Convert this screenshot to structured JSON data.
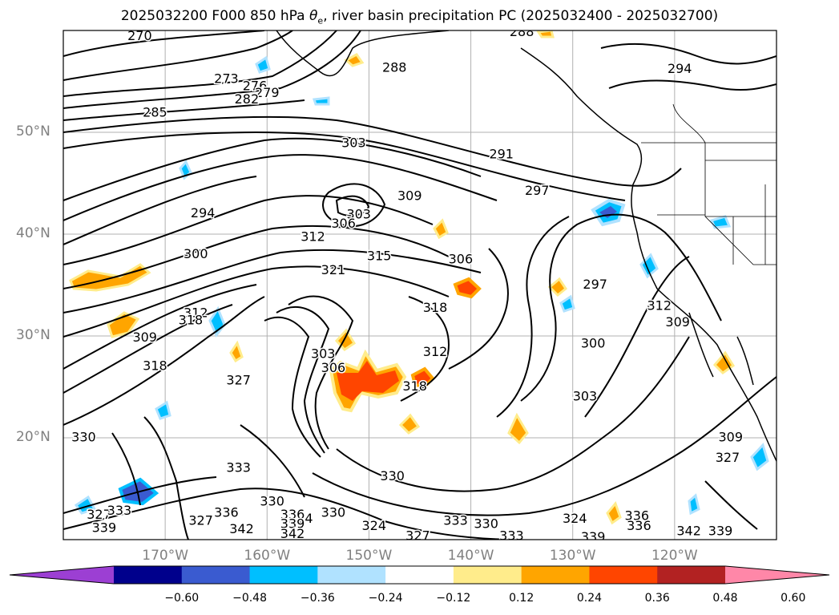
{
  "title_prefix": "2025032200 F000 850 hPa ",
  "title_symbol": "θ",
  "title_subscript": "e",
  "title_suffix": ", river basin precipitation PC (2025032400 - 2025032700)",
  "lat_labels": [
    {
      "text": "50°N",
      "value": 50
    },
    {
      "text": "40°N",
      "value": 40
    },
    {
      "text": "30°N",
      "value": 30
    },
    {
      "text": "20°N",
      "value": 20
    }
  ],
  "lon_labels": [
    {
      "text": "170°W",
      "value": -170
    },
    {
      "text": "160°W",
      "value": -160
    },
    {
      "text": "150°W",
      "value": -150
    },
    {
      "text": "140°W",
      "value": -140
    },
    {
      "text": "130°W",
      "value": -130
    },
    {
      "text": "120°W",
      "value": -120
    }
  ],
  "colorbar": {
    "colors": [
      "#9c3fd3",
      "#00008c",
      "#3a5bd0",
      "#00bfff",
      "#b0e2ff",
      "#ffffff",
      "#ffec8b",
      "#ffa500",
      "#ff4500",
      "#b22222",
      "#ff87a8"
    ],
    "ticks": [
      "−0.60",
      "−0.48",
      "−0.36",
      "−0.24",
      "−0.12",
      "0.12",
      "0.24",
      "0.36",
      "0.48",
      "0.60"
    ]
  },
  "contour_labels": [
    {
      "text": "270",
      "lon": -172.5,
      "lat": 59.4
    },
    {
      "text": "273",
      "lon": -164,
      "lat": 55.2
    },
    {
      "text": "276",
      "lon": -161.2,
      "lat": 54.5
    },
    {
      "text": "279",
      "lon": -160,
      "lat": 53.8
    },
    {
      "text": "282",
      "lon": -162,
      "lat": 53.2
    },
    {
      "text": "285",
      "lon": -171,
      "lat": 51.9
    },
    {
      "text": "288",
      "lon": -147.5,
      "lat": 56.3
    },
    {
      "text": "288",
      "lon": -135,
      "lat": 59.8
    },
    {
      "text": "294",
      "lon": -119.5,
      "lat": 56.2
    },
    {
      "text": "291",
      "lon": -137,
      "lat": 47.8
    },
    {
      "text": "297",
      "lon": -133.5,
      "lat": 44.2
    },
    {
      "text": "303",
      "lon": -151.5,
      "lat": 48.9
    },
    {
      "text": "309",
      "lon": -146,
      "lat": 43.7
    },
    {
      "text": "303",
      "lon": -151,
      "lat": 41.9
    },
    {
      "text": "306",
      "lon": -152.5,
      "lat": 41
    },
    {
      "text": "294",
      "lon": -166.3,
      "lat": 42
    },
    {
      "text": "300",
      "lon": -167,
      "lat": 38
    },
    {
      "text": "312",
      "lon": -155.5,
      "lat": 39.7
    },
    {
      "text": "315",
      "lon": -149,
      "lat": 37.8
    },
    {
      "text": "306",
      "lon": -141,
      "lat": 37.5
    },
    {
      "text": "321",
      "lon": -153.5,
      "lat": 36.4
    },
    {
      "text": "318",
      "lon": -143.5,
      "lat": 32.7
    },
    {
      "text": "297",
      "lon": -127.8,
      "lat": 35
    },
    {
      "text": "312",
      "lon": -143.5,
      "lat": 28.4
    },
    {
      "text": "300",
      "lon": -128,
      "lat": 29.2
    },
    {
      "text": "318",
      "lon": -145.5,
      "lat": 25
    },
    {
      "text": "303",
      "lon": -128.8,
      "lat": 24
    },
    {
      "text": "312",
      "lon": -121.5,
      "lat": 32.9
    },
    {
      "text": "309",
      "lon": -119.7,
      "lat": 31.3
    },
    {
      "text": "312",
      "lon": -167,
      "lat": 32.2
    },
    {
      "text": "309",
      "lon": -172,
      "lat": 29.8
    },
    {
      "text": "318",
      "lon": -167.5,
      "lat": 31.5
    },
    {
      "text": "327",
      "lon": -162.8,
      "lat": 25.6
    },
    {
      "text": "303",
      "lon": -154.5,
      "lat": 28.2
    },
    {
      "text": "306",
      "lon": -153.5,
      "lat": 26.8
    },
    {
      "text": "318",
      "lon": -171,
      "lat": 27
    },
    {
      "text": "330",
      "lon": -178,
      "lat": 20
    },
    {
      "text": "333",
      "lon": -162.8,
      "lat": 17
    },
    {
      "text": "330",
      "lon": -159.5,
      "lat": 13.7
    },
    {
      "text": "336",
      "lon": -164,
      "lat": 12.6
    },
    {
      "text": "324",
      "lon": -156.7,
      "lat": 12
    },
    {
      "text": "330",
      "lon": -153.5,
      "lat": 12.6
    },
    {
      "text": "324",
      "lon": -149.5,
      "lat": 11.3
    },
    {
      "text": "330",
      "lon": -147.7,
      "lat": 16.2
    },
    {
      "text": "333",
      "lon": -141.5,
      "lat": 11.8
    },
    {
      "text": "327",
      "lon": -145.2,
      "lat": 10.3
    },
    {
      "text": "333",
      "lon": -136,
      "lat": 10.3
    },
    {
      "text": "330",
      "lon": -138.5,
      "lat": 11.5
    },
    {
      "text": "324",
      "lon": -129.8,
      "lat": 12
    },
    {
      "text": "339",
      "lon": -128,
      "lat": 10.2
    },
    {
      "text": "336",
      "lon": -123.7,
      "lat": 12.3
    },
    {
      "text": "336",
      "lon": -123.5,
      "lat": 11.3
    },
    {
      "text": "342",
      "lon": -118.6,
      "lat": 10.8
    },
    {
      "text": "339",
      "lon": -115.5,
      "lat": 10.8
    },
    {
      "text": "327",
      "lon": -176.5,
      "lat": 12.4
    },
    {
      "text": "333",
      "lon": -174.5,
      "lat": 12.8
    },
    {
      "text": "339",
      "lon": -176,
      "lat": 11.1
    },
    {
      "text": "327",
      "lon": -166.5,
      "lat": 11.8
    },
    {
      "text": "342",
      "lon": -162.5,
      "lat": 11
    },
    {
      "text": "336",
      "lon": -157.5,
      "lat": 12.4
    },
    {
      "text": "339",
      "lon": -157.5,
      "lat": 11.5
    },
    {
      "text": "342",
      "lon": -157.5,
      "lat": 10.5
    },
    {
      "text": "309",
      "lon": -114.5,
      "lat": 20
    },
    {
      "text": "327",
      "lon": -114.8,
      "lat": 18
    }
  ]
}
